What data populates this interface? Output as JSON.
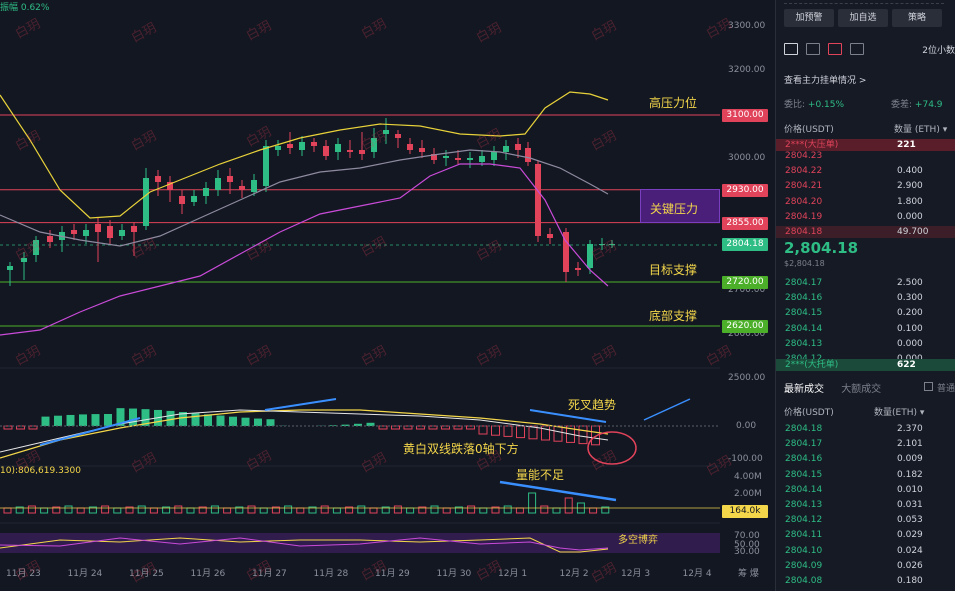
{
  "chart": {
    "amplitude_label": "振幅 0.62%",
    "y_axis_ticks": [
      {
        "label": "3300.00",
        "price": 3300
      },
      {
        "label": "3200.00",
        "price": 3200
      },
      {
        "label": "3000.00",
        "price": 3000
      },
      {
        "label": "2800.00",
        "price": 2800
      },
      {
        "label": "2700.00",
        "price": 2700
      },
      {
        "label": "2600.00",
        "price": 2600
      }
    ],
    "levels": [
      {
        "label": "3100.00",
        "price": 3100,
        "color": "#e0435a",
        "tag_color": "#e0435a"
      },
      {
        "label": "2930.00",
        "price": 2930,
        "color": "#e0435a",
        "tag_color": "#e0435a"
      },
      {
        "label": "2855.00",
        "price": 2855,
        "color": "#e0435a",
        "tag_color": "#e0435a"
      },
      {
        "label": "2720.00",
        "price": 2720,
        "color": "#4caf2a",
        "tag_color": "#4caf2a"
      },
      {
        "label": "2620.00",
        "price": 2620,
        "color": "#4caf2a",
        "tag_color": "#4caf2a"
      }
    ],
    "current_price_tag": "2804.18",
    "annotations": {
      "resistance_high": "高压力位",
      "key_resistance": "关键压力",
      "target_support": "目标支撑",
      "bottom_support": "底部支撑",
      "death_cross": "死叉趋势",
      "macd_note": "黄白双线跌落0轴下方",
      "volume_note": "量能不足",
      "long_short": "多空博弈"
    },
    "macd_ticks": [
      "2500.00",
      "0.00",
      "-100.00"
    ],
    "volume_info": "10):806,619.3300",
    "volume_ticks": [
      "4.00M",
      "2.00M",
      "164.0k"
    ],
    "rsi_ticks": [
      "70.00",
      "50.00",
      "30.00"
    ],
    "x_labels": [
      "11月 23",
      "11月 24",
      "11月 25",
      "11月 26",
      "11月 27",
      "11月 28",
      "11月 29",
      "11月 30",
      "12月 1",
      "12月 2",
      "12月 3",
      "12月 4"
    ],
    "watermark": "白玥",
    "footer_right": "筹 爆"
  },
  "panel": {
    "buttons": [
      "加预警",
      "加自选",
      "策略"
    ],
    "precision": "2位小数",
    "main_orders_link": "查看主力挂单情况 >",
    "stat_left_label": "委比:",
    "stat_left_value": "+0.15%",
    "stat_right_label": "委差:",
    "stat_right_value": "+74.9",
    "col_price": "价格(USDT)",
    "col_qty": "数量 (ETH) ▾",
    "ask_big": {
      "price": "2***(大压单)",
      "qty": "221"
    },
    "asks": [
      {
        "price": "2804.23",
        "qty": ""
      },
      {
        "price": "2804.22",
        "qty": "0.400"
      },
      {
        "price": "2804.21",
        "qty": "2.900"
      },
      {
        "price": "2804.20",
        "qty": "1.800"
      },
      {
        "price": "2804.19",
        "qty": "0.000"
      },
      {
        "price": "2804.18",
        "qty": "49.700"
      }
    ],
    "last_price": "2,804.18",
    "last_price_sub": "$2,804.18",
    "bids": [
      {
        "price": "2804.17",
        "qty": "2.500"
      },
      {
        "price": "2804.16",
        "qty": "0.300"
      },
      {
        "price": "2804.15",
        "qty": "0.200"
      },
      {
        "price": "2804.14",
        "qty": "0.100"
      },
      {
        "price": "2804.13",
        "qty": "0.000"
      },
      {
        "price": "2804.12",
        "qty": "0.000"
      }
    ],
    "bid_big": {
      "price": "2***(大托单)",
      "qty": "622"
    },
    "tab_latest": "最新成交",
    "tab_large": "大额成交",
    "checkbox_label": "普通",
    "trades_col_price": "价格(USDT)",
    "trades_col_qty": "数量(ETH) ▾",
    "trades": [
      {
        "price": "2804.18",
        "qty": "2.370"
      },
      {
        "price": "2804.17",
        "qty": "2.101"
      },
      {
        "price": "2804.16",
        "qty": "0.009"
      },
      {
        "price": "2804.15",
        "qty": "0.182"
      },
      {
        "price": "2804.14",
        "qty": "0.010"
      },
      {
        "price": "2804.13",
        "qty": "0.031"
      },
      {
        "price": "2804.12",
        "qty": "0.053"
      },
      {
        "price": "2804.11",
        "qty": "0.029"
      },
      {
        "price": "2804.10",
        "qty": "0.024"
      },
      {
        "price": "2804.09",
        "qty": "0.026"
      },
      {
        "price": "2804.08",
        "qty": "0.180"
      }
    ]
  },
  "colors": {
    "up": "#2ebd85",
    "down": "#e0435a",
    "accent": "#f3d64a"
  }
}
